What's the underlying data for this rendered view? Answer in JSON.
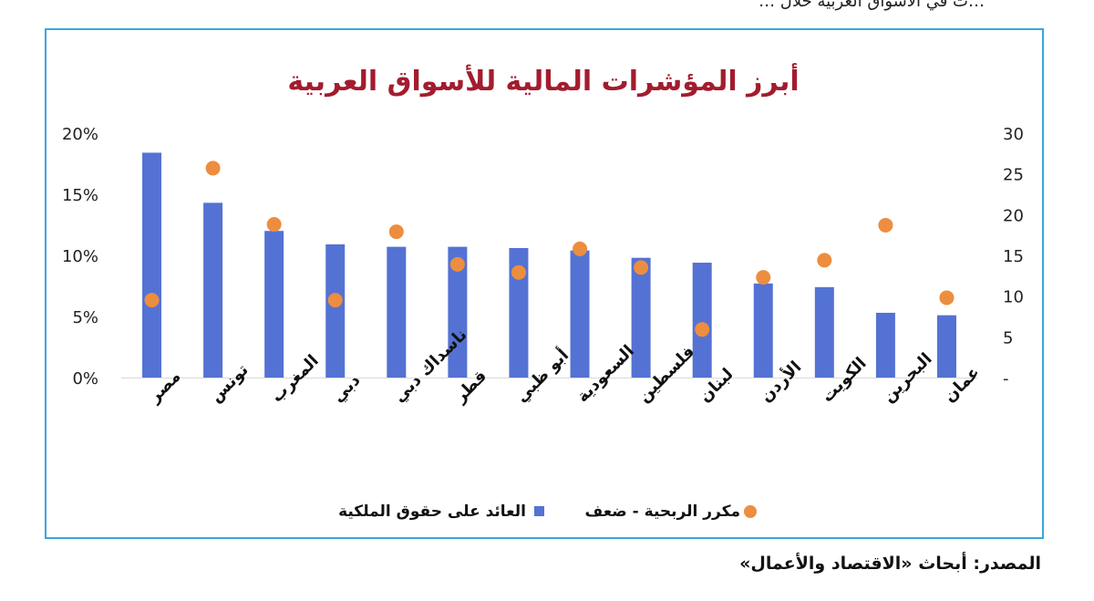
{
  "header_fragment": "…ت في الأسواق العربية خلال …",
  "source": "المصدر: أبحاث «الاقتصاد والأعمال»",
  "colors": {
    "frame": "#39a7dc",
    "bar": "#5472d3",
    "dot": "#ed8d3f",
    "title": "#a21c2e",
    "grid": "#d9d9d9"
  },
  "chart_data": {
    "type": "bar",
    "title": "أبرز المؤشرات المالية للأسواق العربية",
    "categories": [
      "مصر",
      "تونس",
      "المغرب",
      "دبي",
      "ناسداك دبي",
      "قطر",
      "أبو ظبي",
      "السعودية",
      "فلسطين",
      "لبنان",
      "الأردن",
      "الكويت",
      "البحرين",
      "عمان"
    ],
    "series": [
      {
        "name": "العائد على حقوق الملكية",
        "type": "bar",
        "axis": "left",
        "values": [
          0.184,
          0.143,
          0.12,
          0.109,
          0.107,
          0.107,
          0.106,
          0.104,
          0.098,
          0.094,
          0.077,
          0.074,
          0.053,
          0.051
        ]
      },
      {
        "name": "مكرر الربحية - ضعف",
        "type": "scatter",
        "axis": "right",
        "values": [
          9.5,
          25.7,
          18.8,
          9.5,
          17.9,
          13.9,
          12.9,
          15.8,
          13.5,
          5.9,
          12.3,
          14.4,
          18.7,
          9.8
        ]
      }
    ],
    "y_left": {
      "min": 0,
      "max": 0.2,
      "ticks": [
        "0%",
        "5%",
        "10%",
        "15%",
        "20%"
      ]
    },
    "y_right": {
      "min": 0,
      "max": 30,
      "ticks": [
        "-",
        "5",
        "10",
        "15",
        "20",
        "25",
        "30"
      ]
    },
    "grid": false,
    "legend_position": "bottom",
    "legend": [
      "العائد على حقوق الملكية",
      "مكرر الربحية - ضعف"
    ]
  }
}
